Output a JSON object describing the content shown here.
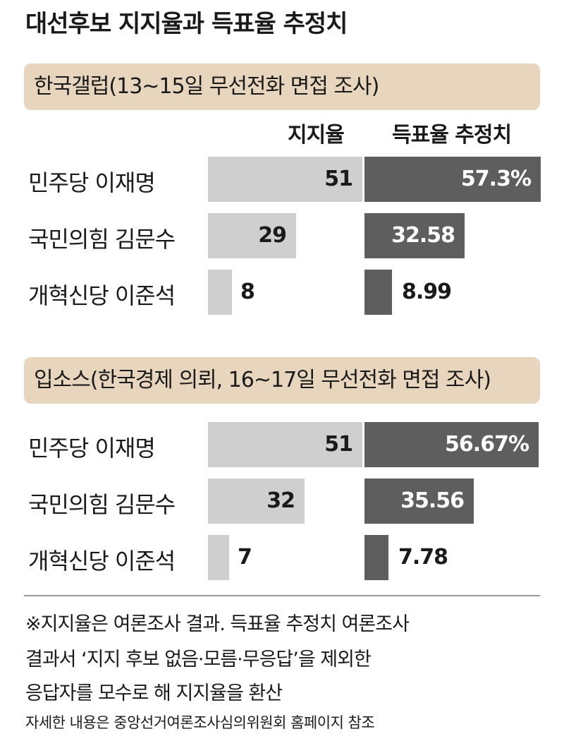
{
  "title": "대선후보 지지율과 득표율 추정치",
  "chart_data": [
    {
      "type": "bar",
      "title": "한국갤럽(13~15일 무선전화 면접 조사)",
      "columns": [
        "지지율",
        "득표율 추정치"
      ],
      "categories": [
        "민주당 이재명",
        "국민의힘 김문수",
        "개혁신당 이준석"
      ],
      "series": [
        {
          "name": "지지율",
          "values": [
            51,
            29,
            8
          ],
          "labels": [
            "51",
            "29",
            "8"
          ]
        },
        {
          "name": "득표율 추정치",
          "values": [
            57.3,
            32.58,
            8.99
          ],
          "labels": [
            "57.3%",
            "32.58",
            "8.99"
          ]
        }
      ]
    },
    {
      "type": "bar",
      "title": "입소스(한국경제 의뢰, 16~17일 무선전화 면접 조사)",
      "columns": [],
      "categories": [
        "민주당 이재명",
        "국민의힘 김문수",
        "개혁신당 이준석"
      ],
      "series": [
        {
          "name": "지지율",
          "values": [
            51,
            32,
            7
          ],
          "labels": [
            "51",
            "32",
            "7"
          ]
        },
        {
          "name": "득표율 추정치",
          "values": [
            56.67,
            35.56,
            7.78
          ],
          "labels": [
            "56.67%",
            "35.56",
            "7.78"
          ]
        }
      ]
    }
  ],
  "notes": [
    "※지지율은 여론조사 결과. 득표율 추정치 여론조사",
    "결과서 ‘지지 후보 없음·모름·무응답’을 제외한",
    "응답자를 모수로 해 지지율을 환산"
  ],
  "source": "자세한 내용은 중앙선거여론조사심의위원회 홈페이지 참조",
  "colors": {
    "support_bar": "#cfcfcf",
    "estimate_bar": "#5e5e5e",
    "header_bg": "#e8d5bd"
  }
}
